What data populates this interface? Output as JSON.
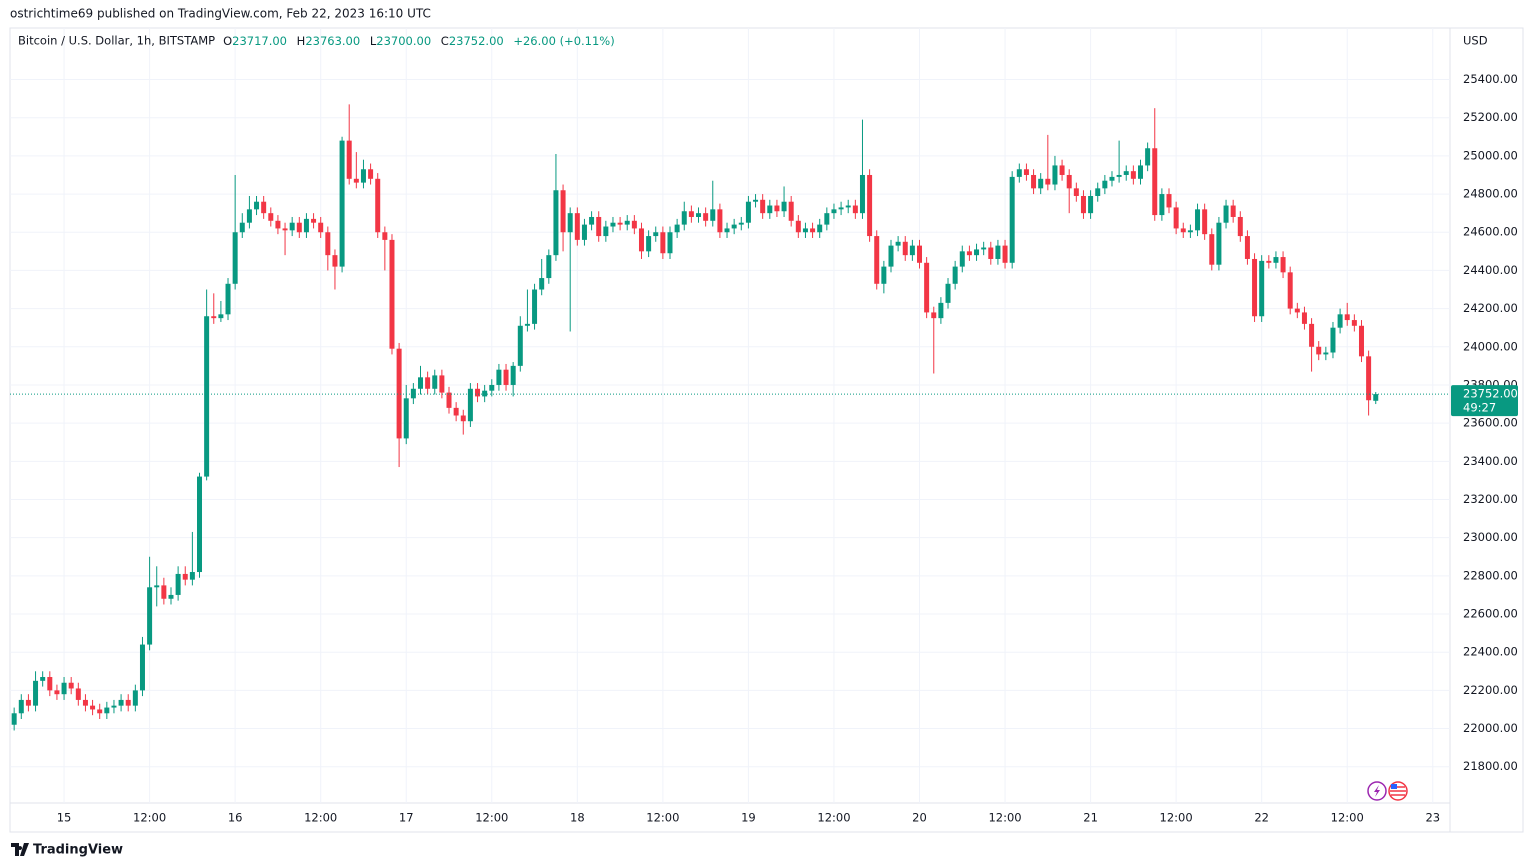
{
  "header": "ostrichtime69 published on TradingView.com, Feb 22, 2023 16:10 UTC",
  "footer": "TradingView",
  "chart_data": {
    "type": "candlestick",
    "legend": {
      "symbol": "Bitcoin / U.S. Dollar, 1h, BITSTAMP",
      "o_label": "O",
      "o": "23717.00",
      "h_label": "H",
      "h": "23763.00",
      "l_label": "L",
      "l": "23700.00",
      "c_label": "C",
      "c": "23752.00",
      "change": "+26.00 (+0.11%)"
    },
    "y_unit": "USD",
    "up_color": "#089981",
    "down_color": "#f23645",
    "grid": true,
    "last_price": {
      "value": 23752,
      "label": "23752.00",
      "countdown": "49:27"
    },
    "xlim": [
      "2023-02-14T16:25",
      "2023-02-23T02:25"
    ],
    "ylim": [
      21610,
      25670
    ],
    "xticks": [
      {
        "value": "2023-02-15T00:00",
        "label": "15"
      },
      {
        "value": "2023-02-15T12:00",
        "label": "12:00"
      },
      {
        "value": "2023-02-16T00:00",
        "label": "16"
      },
      {
        "value": "2023-02-16T12:00",
        "label": "12:00"
      },
      {
        "value": "2023-02-17T00:00",
        "label": "17"
      },
      {
        "value": "2023-02-17T12:00",
        "label": "12:00"
      },
      {
        "value": "2023-02-18T00:00",
        "label": "18"
      },
      {
        "value": "2023-02-18T12:00",
        "label": "12:00"
      },
      {
        "value": "2023-02-19T00:00",
        "label": "19"
      },
      {
        "value": "2023-02-19T12:00",
        "label": "12:00"
      },
      {
        "value": "2023-02-20T00:00",
        "label": "20"
      },
      {
        "value": "2023-02-20T12:00",
        "label": "12:00"
      },
      {
        "value": "2023-02-21T00:00",
        "label": "21"
      },
      {
        "value": "2023-02-21T12:00",
        "label": "12:00"
      },
      {
        "value": "2023-02-22T00:00",
        "label": "22"
      },
      {
        "value": "2023-02-22T12:00",
        "label": "12:00"
      },
      {
        "value": "2023-02-23T00:00",
        "label": "23"
      }
    ],
    "yticks": [
      {
        "value": 21800,
        "label": "21800.00"
      },
      {
        "value": 22000,
        "label": "22000.00"
      },
      {
        "value": 22200,
        "label": "22200.00"
      },
      {
        "value": 22400,
        "label": "22400.00"
      },
      {
        "value": 22600,
        "label": "22600.00"
      },
      {
        "value": 22800,
        "label": "22800.00"
      },
      {
        "value": 23000,
        "label": "23000.00"
      },
      {
        "value": 23200,
        "label": "23200.00"
      },
      {
        "value": 23400,
        "label": "23400.00"
      },
      {
        "value": 23600,
        "label": "23600.00"
      },
      {
        "value": 23800,
        "label": "23800.00"
      },
      {
        "value": 24000,
        "label": "24000.00"
      },
      {
        "value": 24200,
        "label": "24200.00"
      },
      {
        "value": 24400,
        "label": "24400.00"
      },
      {
        "value": 24600,
        "label": "24600.00"
      },
      {
        "value": 24800,
        "label": "24800.00"
      },
      {
        "value": 25000,
        "label": "25000.00"
      },
      {
        "value": 25200,
        "label": "25200.00"
      },
      {
        "value": 25400,
        "label": "25400.00"
      }
    ],
    "x": [
      "2023-02-14T17:00",
      "2023-02-14T18:00",
      "2023-02-14T19:00",
      "2023-02-14T20:00",
      "2023-02-14T21:00",
      "2023-02-14T22:00",
      "2023-02-14T23:00",
      "2023-02-15T00:00",
      "2023-02-15T01:00",
      "2023-02-15T02:00",
      "2023-02-15T03:00",
      "2023-02-15T04:00",
      "2023-02-15T05:00",
      "2023-02-15T06:00",
      "2023-02-15T07:00",
      "2023-02-15T08:00",
      "2023-02-15T09:00",
      "2023-02-15T10:00",
      "2023-02-15T11:00",
      "2023-02-15T12:00",
      "2023-02-15T13:00",
      "2023-02-15T14:00",
      "2023-02-15T15:00",
      "2023-02-15T16:00",
      "2023-02-15T17:00",
      "2023-02-15T18:00",
      "2023-02-15T19:00",
      "2023-02-15T20:00",
      "2023-02-15T21:00",
      "2023-02-15T22:00",
      "2023-02-15T23:00",
      "2023-02-16T00:00",
      "2023-02-16T01:00",
      "2023-02-16T02:00",
      "2023-02-16T03:00",
      "2023-02-16T04:00",
      "2023-02-16T05:00",
      "2023-02-16T06:00",
      "2023-02-16T07:00",
      "2023-02-16T08:00",
      "2023-02-16T09:00",
      "2023-02-16T10:00",
      "2023-02-16T11:00",
      "2023-02-16T12:00",
      "2023-02-16T13:00",
      "2023-02-16T14:00",
      "2023-02-16T15:00",
      "2023-02-16T16:00",
      "2023-02-16T17:00",
      "2023-02-16T18:00",
      "2023-02-16T19:00",
      "2023-02-16T20:00",
      "2023-02-16T21:00",
      "2023-02-16T22:00",
      "2023-02-16T23:00",
      "2023-02-17T00:00",
      "2023-02-17T01:00",
      "2023-02-17T02:00",
      "2023-02-17T03:00",
      "2023-02-17T04:00",
      "2023-02-17T05:00",
      "2023-02-17T06:00",
      "2023-02-17T07:00",
      "2023-02-17T08:00",
      "2023-02-17T09:00",
      "2023-02-17T10:00",
      "2023-02-17T11:00",
      "2023-02-17T12:00",
      "2023-02-17T13:00",
      "2023-02-17T14:00",
      "2023-02-17T15:00",
      "2023-02-17T16:00",
      "2023-02-17T17:00",
      "2023-02-17T18:00",
      "2023-02-17T19:00",
      "2023-02-17T20:00",
      "2023-02-17T21:00",
      "2023-02-17T22:00",
      "2023-02-17T23:00",
      "2023-02-18T00:00",
      "2023-02-18T01:00",
      "2023-02-18T02:00",
      "2023-02-18T03:00",
      "2023-02-18T04:00",
      "2023-02-18T05:00",
      "2023-02-18T06:00",
      "2023-02-18T07:00",
      "2023-02-18T08:00",
      "2023-02-18T09:00",
      "2023-02-18T10:00",
      "2023-02-18T11:00",
      "2023-02-18T12:00",
      "2023-02-18T13:00",
      "2023-02-18T14:00",
      "2023-02-18T15:00",
      "2023-02-18T16:00",
      "2023-02-18T17:00",
      "2023-02-18T18:00",
      "2023-02-18T19:00",
      "2023-02-18T20:00",
      "2023-02-18T21:00",
      "2023-02-18T22:00",
      "2023-02-18T23:00",
      "2023-02-19T00:00",
      "2023-02-19T01:00",
      "2023-02-19T02:00",
      "2023-02-19T03:00",
      "2023-02-19T04:00",
      "2023-02-19T05:00",
      "2023-02-19T06:00",
      "2023-02-19T07:00",
      "2023-02-19T08:00",
      "2023-02-19T09:00",
      "2023-02-19T10:00",
      "2023-02-19T11:00",
      "2023-02-19T12:00",
      "2023-02-19T13:00",
      "2023-02-19T14:00",
      "2023-02-19T15:00",
      "2023-02-19T16:00",
      "2023-02-19T17:00",
      "2023-02-19T18:00",
      "2023-02-19T19:00",
      "2023-02-19T20:00",
      "2023-02-19T21:00",
      "2023-02-19T22:00",
      "2023-02-19T23:00",
      "2023-02-20T00:00",
      "2023-02-20T01:00",
      "2023-02-20T02:00",
      "2023-02-20T03:00",
      "2023-02-20T04:00",
      "2023-02-20T05:00",
      "2023-02-20T06:00",
      "2023-02-20T07:00",
      "2023-02-20T08:00",
      "2023-02-20T09:00",
      "2023-02-20T10:00",
      "2023-02-20T11:00",
      "2023-02-20T12:00",
      "2023-02-20T13:00",
      "2023-02-20T14:00",
      "2023-02-20T15:00",
      "2023-02-20T16:00",
      "2023-02-20T17:00",
      "2023-02-20T18:00",
      "2023-02-20T19:00",
      "2023-02-20T20:00",
      "2023-02-20T21:00",
      "2023-02-20T22:00",
      "2023-02-20T23:00",
      "2023-02-21T00:00",
      "2023-02-21T01:00",
      "2023-02-21T02:00",
      "2023-02-21T03:00",
      "2023-02-21T04:00",
      "2023-02-21T05:00",
      "2023-02-21T06:00",
      "2023-02-21T07:00",
      "2023-02-21T08:00",
      "2023-02-21T09:00",
      "2023-02-21T10:00",
      "2023-02-21T11:00",
      "2023-02-21T12:00",
      "2023-02-21T13:00",
      "2023-02-21T14:00",
      "2023-02-21T15:00",
      "2023-02-21T16:00",
      "2023-02-21T17:00",
      "2023-02-21T18:00",
      "2023-02-21T19:00",
      "2023-02-21T20:00",
      "2023-02-21T21:00",
      "2023-02-21T22:00",
      "2023-02-21T23:00",
      "2023-02-22T00:00",
      "2023-02-22T01:00",
      "2023-02-22T02:00",
      "2023-02-22T03:00",
      "2023-02-22T04:00",
      "2023-02-22T05:00",
      "2023-02-22T06:00",
      "2023-02-22T07:00",
      "2023-02-22T08:00",
      "2023-02-22T09:00",
      "2023-02-22T10:00",
      "2023-02-22T11:00",
      "2023-02-22T12:00",
      "2023-02-22T13:00",
      "2023-02-22T14:00",
      "2023-02-22T15:00",
      "2023-02-22T16:00"
    ],
    "open": [
      22020,
      22080,
      22150,
      22120,
      22250,
      22270,
      22200,
      22180,
      22240,
      22210,
      22150,
      22120,
      22100,
      22080,
      22110,
      22120,
      22150,
      22120,
      22200,
      22440,
      22740,
      22750,
      22680,
      22700,
      22810,
      22780,
      22820,
      23320,
      24160,
      24150,
      24170,
      24330,
      24600,
      24650,
      24720,
      24760,
      24700,
      24660,
      24620,
      24610,
      24650,
      24600,
      24670,
      24650,
      24600,
      24480,
      24420,
      25080,
      24880,
      24860,
      24930,
      24880,
      24600,
      24560,
      23990,
      23520,
      23730,
      23780,
      23840,
      23780,
      23850,
      23760,
      23680,
      23640,
      23610,
      23780,
      23740,
      23770,
      23800,
      23880,
      23800,
      23900,
      24110,
      24120,
      24300,
      24360,
      24480,
      24820,
      24600,
      24700,
      24560,
      24640,
      24680,
      24580,
      24630,
      24650,
      24640,
      24660,
      24620,
      24500,
      24580,
      24600,
      24490,
      24600,
      24640,
      24710,
      24680,
      24700,
      24660,
      24720,
      24600,
      24620,
      24640,
      24650,
      24760,
      24770,
      24700,
      24740,
      24710,
      24760,
      24660,
      24600,
      24620,
      24600,
      24640,
      24700,
      24720,
      24730,
      24740,
      24700,
      24900,
      24580,
      24330,
      24420,
      24530,
      24550,
      24480,
      24530,
      24440,
      24180,
      24150,
      24230,
      24330,
      24420,
      24500,
      24480,
      24510,
      24520,
      24460,
      24530,
      24440,
      24890,
      24930,
      24900,
      24830,
      24880,
      24850,
      24950,
      24900,
      24830,
      24790,
      24700,
      24790,
      24830,
      24870,
      24890,
      24900,
      24920,
      24880,
      24950,
      25040,
      24690,
      24800,
      24730,
      24620,
      24600,
      24610,
      24720,
      24590,
      24430,
      24650,
      24740,
      24680,
      24580,
      24460,
      24160,
      24450,
      24440,
      24470,
      24390,
      24200,
      24180,
      24120,
      24000,
      23960,
      23970,
      24100,
      24170,
      24140,
      24110,
      23950,
      23717
    ],
    "high": [
      22110,
      22180,
      22180,
      22300,
      22300,
      22300,
      22230,
      22270,
      22270,
      22240,
      22180,
      22150,
      22130,
      22140,
      22150,
      22180,
      22180,
      22230,
      22480,
      22900,
      22850,
      22790,
      22740,
      22850,
      22850,
      23030,
      23340,
      24300,
      24280,
      24240,
      24360,
      24900,
      24700,
      24790,
      24790,
      24790,
      24730,
      24690,
      24650,
      24680,
      24680,
      24700,
      24700,
      24680,
      24630,
      24510,
      25100,
      25270,
      25020,
      24980,
      24960,
      24910,
      24630,
      24590,
      24020,
      23800,
      23810,
      23900,
      23870,
      23880,
      23880,
      23790,
      23710,
      23670,
      23810,
      23810,
      23800,
      23830,
      23910,
      23910,
      23920,
      24160,
      24300,
      24330,
      24460,
      24510,
      25010,
      24850,
      24730,
      24730,
      24670,
      24710,
      24710,
      24660,
      24680,
      24680,
      24690,
      24690,
      24650,
      24610,
      24630,
      24630,
      24630,
      24670,
      24760,
      24740,
      24730,
      24730,
      24870,
      24750,
      24650,
      24670,
      24680,
      24790,
      24800,
      24800,
      24770,
      24770,
      24840,
      24790,
      24690,
      24650,
      24650,
      24670,
      24730,
      24750,
      24760,
      24770,
      24770,
      25190,
      24930,
      24610,
      24450,
      24560,
      24580,
      24580,
      24560,
      24560,
      24470,
      24210,
      24260,
      24360,
      24450,
      24530,
      24530,
      24540,
      24550,
      24550,
      24560,
      24560,
      24920,
      24960,
      24960,
      24930,
      24910,
      25110,
      25000,
      24980,
      24930,
      24860,
      24820,
      24820,
      24860,
      24900,
      24920,
      25080,
      24950,
      24950,
      24980,
      25070,
      25250,
      24830,
      24830,
      24760,
      24650,
      24640,
      24750,
      24750,
      24620,
      24680,
      24770,
      24770,
      24710,
      24610,
      24490,
      24480,
      24480,
      24500,
      24500,
      24420,
      24230,
      24210,
      24150,
      24030,
      24000,
      24130,
      24200,
      24230,
      24170,
      24140,
      23980,
      23763
    ],
    "low": [
      21990,
      22050,
      22090,
      22090,
      22220,
      22170,
      22150,
      22150,
      22180,
      22120,
      22090,
      22070,
      22050,
      22050,
      22080,
      22090,
      22090,
      22090,
      22170,
      22410,
      22640,
      22650,
      22650,
      22670,
      22750,
      22750,
      22790,
      23300,
      24120,
      24130,
      24140,
      24300,
      24570,
      24620,
      24690,
      24670,
      24630,
      24590,
      24480,
      24580,
      24570,
      24570,
      24620,
      24570,
      24400,
      24300,
      24390,
      24850,
      24830,
      24830,
      24850,
      24570,
      24400,
      23960,
      23370,
      23490,
      23700,
      23750,
      23750,
      23750,
      23730,
      23650,
      23610,
      23540,
      23580,
      23710,
      23710,
      23740,
      23770,
      23770,
      23740,
      23870,
      24080,
      24090,
      24270,
      24330,
      24450,
      24500,
      24080,
      24530,
      24530,
      24610,
      24550,
      24550,
      24600,
      24610,
      24610,
      24590,
      24460,
      24470,
      24550,
      24460,
      24460,
      24570,
      24610,
      24650,
      24650,
      24630,
      24630,
      24570,
      24570,
      24590,
      24610,
      24620,
      24730,
      24670,
      24670,
      24680,
      24680,
      24630,
      24570,
      24570,
      24570,
      24570,
      24610,
      24670,
      24690,
      24700,
      24670,
      24670,
      24550,
      24300,
      24280,
      24390,
      24500,
      24450,
      24450,
      24410,
      24150,
      23860,
      24120,
      24200,
      24300,
      24390,
      24450,
      24450,
      24480,
      24430,
      24430,
      24410,
      24410,
      24860,
      24870,
      24800,
      24800,
      24820,
      24820,
      24870,
      24700,
      24760,
      24670,
      24670,
      24760,
      24800,
      24840,
      24860,
      24870,
      24850,
      24850,
      24920,
      24660,
      24660,
      24700,
      24590,
      24570,
      24570,
      24580,
      24560,
      24400,
      24400,
      24620,
      24650,
      24550,
      24430,
      24130,
      24130,
      24410,
      24410,
      24360,
      24170,
      24150,
      24090,
      23870,
      23930,
      23930,
      23940,
      24070,
      24110,
      24080,
      23920,
      23640,
      23700
    ],
    "close": [
      22080,
      22150,
      22120,
      22250,
      22270,
      22200,
      22180,
      22240,
      22210,
      22150,
      22120,
      22100,
      22080,
      22110,
      22120,
      22150,
      22120,
      22200,
      22440,
      22740,
      22750,
      22680,
      22700,
      22810,
      22780,
      22820,
      23320,
      24160,
      24150,
      24170,
      24330,
      24600,
      24650,
      24720,
      24760,
      24700,
      24660,
      24620,
      24610,
      24650,
      24600,
      24670,
      24650,
      24600,
      24480,
      24420,
      25080,
      24880,
      24860,
      24930,
      24880,
      24600,
      24560,
      23990,
      23520,
      23730,
      23780,
      23840,
      23780,
      23850,
      23760,
      23680,
      23640,
      23610,
      23780,
      23740,
      23770,
      23800,
      23880,
      23800,
      23900,
      24110,
      24120,
      24300,
      24360,
      24480,
      24820,
      24600,
      24700,
      24560,
      24640,
      24680,
      24580,
      24630,
      24650,
      24640,
      24660,
      24620,
      24500,
      24580,
      24600,
      24490,
      24600,
      24640,
      24710,
      24680,
      24700,
      24660,
      24720,
      24600,
      24620,
      24640,
      24650,
      24760,
      24770,
      24700,
      24740,
      24710,
      24760,
      24660,
      24600,
      24620,
      24600,
      24640,
      24700,
      24720,
      24730,
      24740,
      24700,
      24900,
      24580,
      24330,
      24420,
      24530,
      24550,
      24480,
      24530,
      24440,
      24180,
      24150,
      24230,
      24330,
      24420,
      24500,
      24480,
      24510,
      24520,
      24460,
      24530,
      24440,
      24890,
      24930,
      24900,
      24830,
      24880,
      24850,
      24950,
      24900,
      24830,
      24790,
      24700,
      24790,
      24830,
      24870,
      24890,
      24900,
      24920,
      24880,
      24950,
      25040,
      24690,
      24800,
      24730,
      24620,
      24600,
      24610,
      24720,
      24590,
      24430,
      24650,
      24740,
      24680,
      24580,
      24460,
      24160,
      24450,
      24440,
      24470,
      24390,
      24200,
      24180,
      24120,
      24000,
      23960,
      23970,
      24100,
      24170,
      24140,
      24110,
      23950,
      23720,
      23752
    ]
  }
}
